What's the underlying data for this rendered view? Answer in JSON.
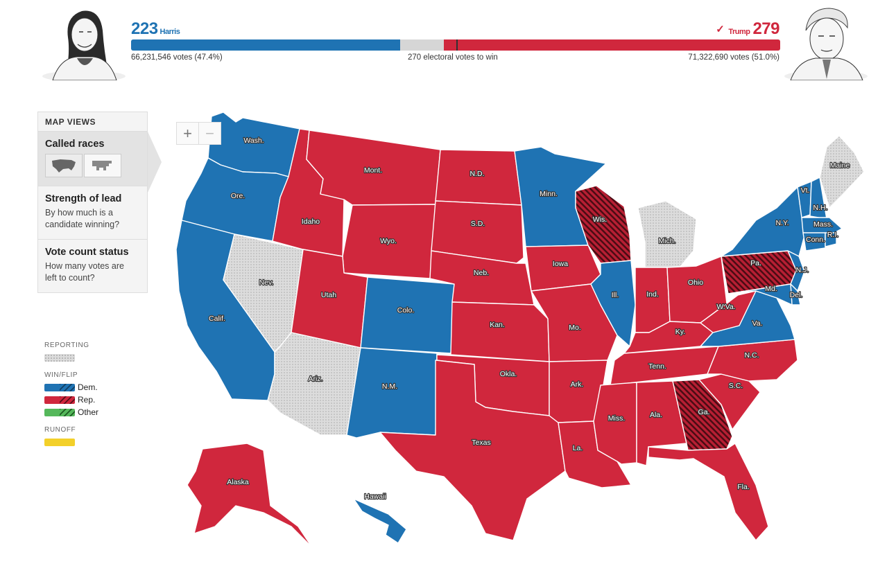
{
  "header": {
    "harris": {
      "ev": "223",
      "name": "Harris",
      "votes": "66,231,546 votes (47.4%)",
      "color": "#1f73b3",
      "ev_value": 223
    },
    "trump": {
      "ev": "279",
      "name": "Trump",
      "check": "✓",
      "votes": "71,322,690 votes (51.0%)",
      "color": "#d0273d",
      "ev_value": 279
    },
    "center_label": "270 electoral votes to win",
    "total_ev": 538
  },
  "sidebar": {
    "title": "MAP VIEWS",
    "items": [
      {
        "title": "Called races",
        "desc": "",
        "active": true
      },
      {
        "title": "Strength of lead",
        "desc": "By how much is a candidate winning?"
      },
      {
        "title": "Vote count status",
        "desc": "How many votes are left to count?"
      }
    ],
    "thumbs": [
      "us-map-icon",
      "cartogram-icon"
    ]
  },
  "legend": {
    "reporting": "REPORTING",
    "winflip": "WIN/FLIP",
    "dem": "Dem.",
    "rep": "Rep.",
    "other": "Other",
    "runoff": "RUNOFF"
  },
  "zoom": {
    "in": "+",
    "out": "−"
  },
  "map": {
    "colors": {
      "dem": "#1f73b3",
      "rep": "#d0273d",
      "flip_rep": "#9c1a2b",
      "reporting": "#dcdcdc"
    },
    "states": [
      {
        "name": "Wash.",
        "status": "dem"
      },
      {
        "name": "Ore.",
        "status": "dem"
      },
      {
        "name": "Calif.",
        "status": "dem"
      },
      {
        "name": "Nev.",
        "status": "reporting"
      },
      {
        "name": "Idaho",
        "status": "rep"
      },
      {
        "name": "Mont.",
        "status": "rep"
      },
      {
        "name": "Wyo.",
        "status": "rep"
      },
      {
        "name": "Utah",
        "status": "rep"
      },
      {
        "name": "Ariz.",
        "status": "reporting"
      },
      {
        "name": "Colo.",
        "status": "dem"
      },
      {
        "name": "N.M.",
        "status": "dem"
      },
      {
        "name": "N.D.",
        "status": "rep"
      },
      {
        "name": "S.D.",
        "status": "rep"
      },
      {
        "name": "Neb.",
        "status": "rep"
      },
      {
        "name": "Kan.",
        "status": "rep"
      },
      {
        "name": "Okla.",
        "status": "rep"
      },
      {
        "name": "Texas",
        "status": "rep"
      },
      {
        "name": "Minn.",
        "status": "dem"
      },
      {
        "name": "Iowa",
        "status": "rep"
      },
      {
        "name": "Mo.",
        "status": "rep"
      },
      {
        "name": "Ark.",
        "status": "rep"
      },
      {
        "name": "La.",
        "status": "rep"
      },
      {
        "name": "Wis.",
        "status": "flip_rep"
      },
      {
        "name": "Ill.",
        "status": "dem"
      },
      {
        "name": "Mich.",
        "status": "reporting"
      },
      {
        "name": "Ind.",
        "status": "rep"
      },
      {
        "name": "Ohio",
        "status": "rep"
      },
      {
        "name": "Ky.",
        "status": "rep"
      },
      {
        "name": "Tenn.",
        "status": "rep"
      },
      {
        "name": "Miss.",
        "status": "rep"
      },
      {
        "name": "Ala.",
        "status": "rep"
      },
      {
        "name": "Ga.",
        "status": "flip_rep"
      },
      {
        "name": "Fla.",
        "status": "rep"
      },
      {
        "name": "S.C.",
        "status": "rep"
      },
      {
        "name": "N.C.",
        "status": "rep"
      },
      {
        "name": "Va.",
        "status": "dem"
      },
      {
        "name": "W.Va.",
        "status": "rep"
      },
      {
        "name": "Pa.",
        "status": "flip_rep"
      },
      {
        "name": "N.Y.",
        "status": "dem"
      },
      {
        "name": "N.J.",
        "status": "dem"
      },
      {
        "name": "Del.",
        "status": "dem"
      },
      {
        "name": "Md.",
        "status": "dem"
      },
      {
        "name": "Vt.",
        "status": "dem"
      },
      {
        "name": "N.H.",
        "status": "dem"
      },
      {
        "name": "Mass.",
        "status": "dem"
      },
      {
        "name": "Conn.",
        "status": "dem"
      },
      {
        "name": "R.I.",
        "status": "dem"
      },
      {
        "name": "Maine",
        "status": "reporting"
      },
      {
        "name": "Alaska",
        "status": "rep"
      },
      {
        "name": "Hawaii",
        "status": "dem"
      }
    ]
  }
}
